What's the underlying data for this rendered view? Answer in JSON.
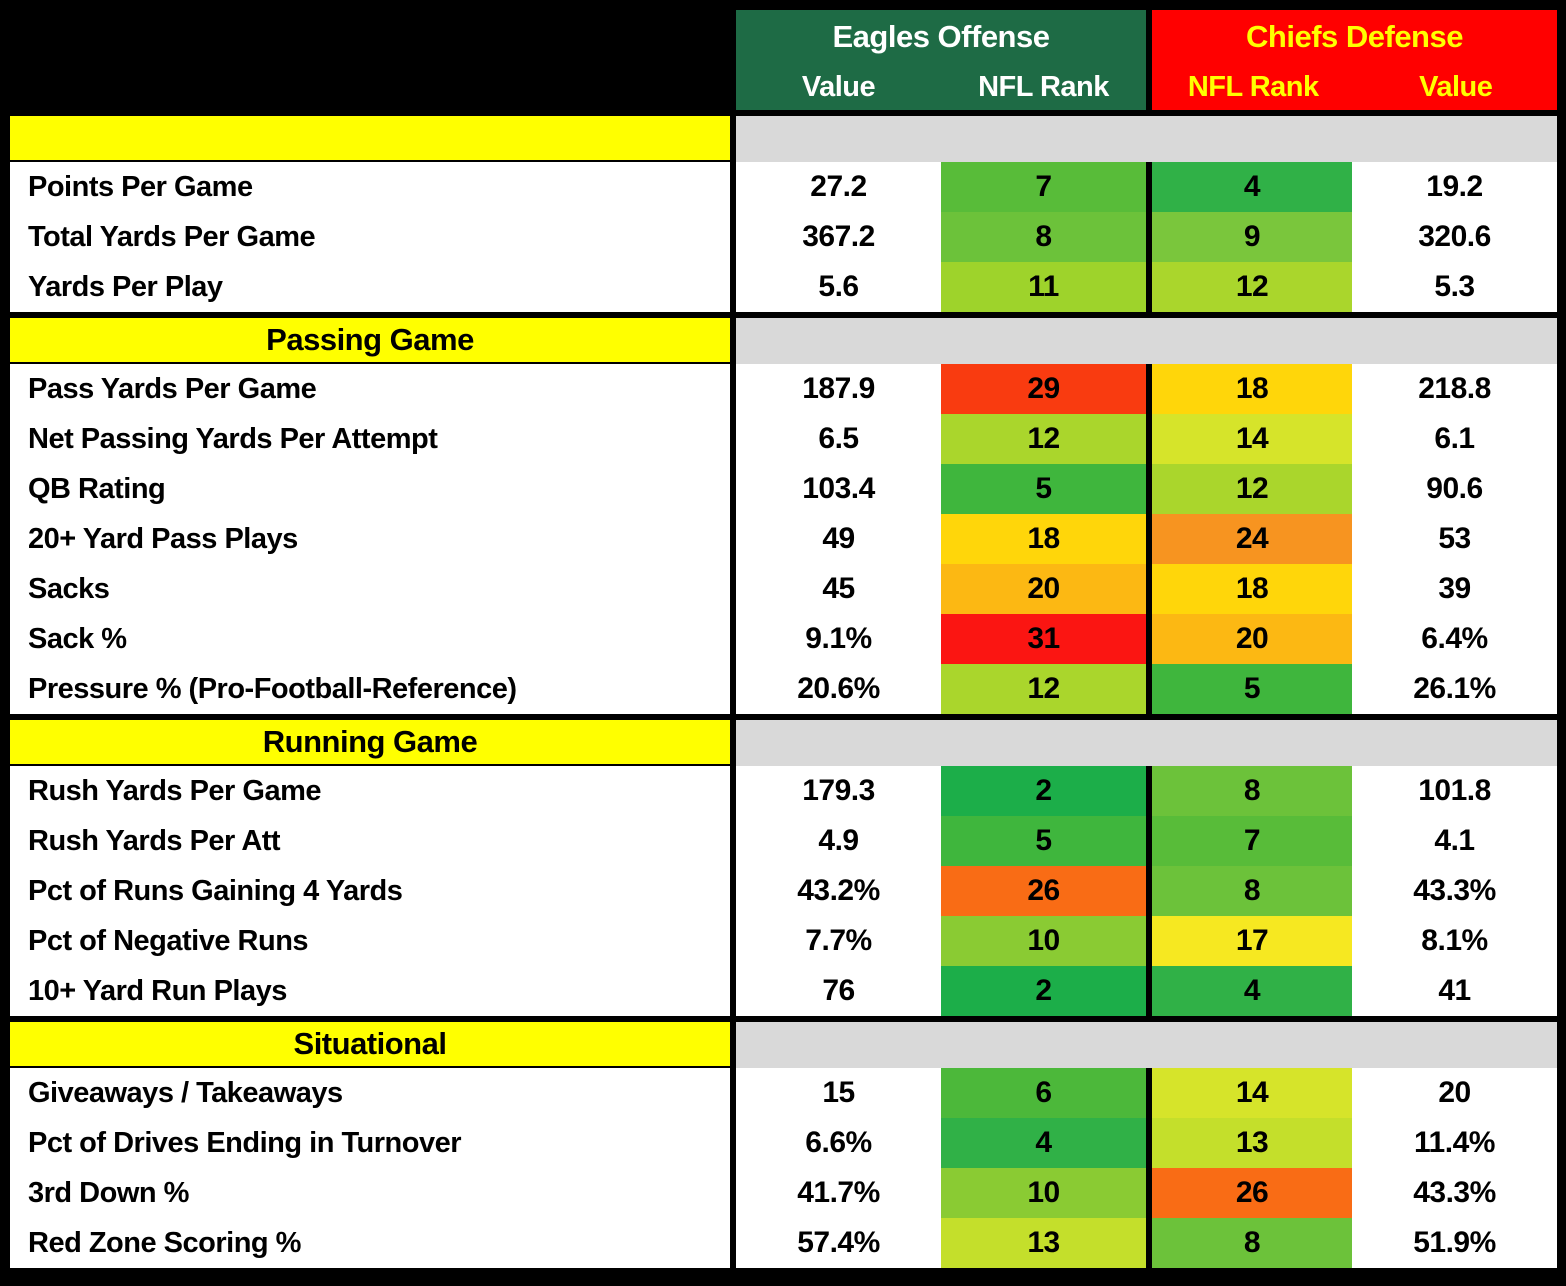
{
  "header": {
    "eagles": {
      "title": "Eagles Offense",
      "sub": [
        "Value",
        "NFL Rank"
      ]
    },
    "chiefs": {
      "title": "Chiefs Defense",
      "sub": [
        "NFL Rank",
        "Value"
      ]
    }
  },
  "colors": {
    "eagles_header_bg": "#1E6B45",
    "eagles_header_text": "#FFFFFF",
    "chiefs_header_bg": "#FF0000",
    "chiefs_header_text": "#FFFF00",
    "section_band_bg": "#FFFF00",
    "section_band_right_bg": "#D9D9D9",
    "row_bg": "#FFFFFF",
    "border": "#000000",
    "text": "#000000",
    "rank_colors": {
      "2": "#1CAE49",
      "4": "#30B147",
      "5": "#3FB63D",
      "6": "#4CB83A",
      "7": "#58BC39",
      "8": "#6CC23A",
      "9": "#7AC63C",
      "10": "#8ACB33",
      "11": "#9ED32B",
      "12": "#AAD62C",
      "13": "#C4DF2B",
      "14": "#D6E42A",
      "17": "#F6E821",
      "18": "#FFD60A",
      "20": "#FCB813",
      "24": "#F79420",
      "26": "#F96C15",
      "29": "#F93B10",
      "31": "#FB1512"
    }
  },
  "chart_data": {
    "type": "table",
    "column_groups": [
      {
        "label": "Eagles Offense",
        "columns": [
          "Value",
          "NFL Rank"
        ]
      },
      {
        "label": "Chiefs Defense",
        "columns": [
          "NFL Rank",
          "Value"
        ]
      }
    ],
    "rank_color_scale": "green (rank 1) through yellow (~16) to red (rank 32)",
    "sections": [
      {
        "title": "",
        "rows": [
          {
            "label": "Points Per Game",
            "eagles_value": "27.2",
            "eagles_rank": 7,
            "chiefs_rank": 4,
            "chiefs_value": "19.2"
          },
          {
            "label": "Total Yards Per Game",
            "eagles_value": "367.2",
            "eagles_rank": 8,
            "chiefs_rank": 9,
            "chiefs_value": "320.6"
          },
          {
            "label": "Yards Per Play",
            "eagles_value": "5.6",
            "eagles_rank": 11,
            "chiefs_rank": 12,
            "chiefs_value": "5.3"
          }
        ]
      },
      {
        "title": "Passing Game",
        "rows": [
          {
            "label": "Pass Yards Per Game",
            "eagles_value": "187.9",
            "eagles_rank": 29,
            "chiefs_rank": 18,
            "chiefs_value": "218.8"
          },
          {
            "label": "Net Passing Yards Per Attempt",
            "eagles_value": "6.5",
            "eagles_rank": 12,
            "chiefs_rank": 14,
            "chiefs_value": "6.1"
          },
          {
            "label": "QB Rating",
            "eagles_value": "103.4",
            "eagles_rank": 5,
            "chiefs_rank": 12,
            "chiefs_value": "90.6"
          },
          {
            "label": "20+ Yard Pass Plays",
            "eagles_value": "49",
            "eagles_rank": 18,
            "chiefs_rank": 24,
            "chiefs_value": "53"
          },
          {
            "label": "Sacks",
            "eagles_value": "45",
            "eagles_rank": 20,
            "chiefs_rank": 18,
            "chiefs_value": "39"
          },
          {
            "label": "Sack %",
            "eagles_value": "9.1%",
            "eagles_rank": 31,
            "chiefs_rank": 20,
            "chiefs_value": "6.4%"
          },
          {
            "label": "Pressure % (Pro-Football-Reference)",
            "eagles_value": "20.6%",
            "eagles_rank": 12,
            "chiefs_rank": 5,
            "chiefs_value": "26.1%"
          }
        ]
      },
      {
        "title": "Running Game",
        "rows": [
          {
            "label": "Rush Yards Per Game",
            "eagles_value": "179.3",
            "eagles_rank": 2,
            "chiefs_rank": 8,
            "chiefs_value": "101.8"
          },
          {
            "label": "Rush Yards Per Att",
            "eagles_value": "4.9",
            "eagles_rank": 5,
            "chiefs_rank": 7,
            "chiefs_value": "4.1"
          },
          {
            "label": "Pct of Runs Gaining 4 Yards",
            "eagles_value": "43.2%",
            "eagles_rank": 26,
            "chiefs_rank": 8,
            "chiefs_value": "43.3%"
          },
          {
            "label": "Pct of Negative Runs",
            "eagles_value": "7.7%",
            "eagles_rank": 10,
            "chiefs_rank": 17,
            "chiefs_value": "8.1%"
          },
          {
            "label": "10+ Yard Run Plays",
            "eagles_value": "76",
            "eagles_rank": 2,
            "chiefs_rank": 4,
            "chiefs_value": "41"
          }
        ]
      },
      {
        "title": "Situational",
        "rows": [
          {
            "label": "Giveaways / Takeaways",
            "eagles_value": "15",
            "eagles_rank": 6,
            "chiefs_rank": 14,
            "chiefs_value": "20"
          },
          {
            "label": "Pct of Drives Ending in Turnover",
            "eagles_value": "6.6%",
            "eagles_rank": 4,
            "chiefs_rank": 13,
            "chiefs_value": "11.4%"
          },
          {
            "label": "3rd Down %",
            "eagles_value": "41.7%",
            "eagles_rank": 10,
            "chiefs_rank": 26,
            "chiefs_value": "43.3%"
          },
          {
            "label": "Red Zone Scoring %",
            "eagles_value": "57.4%",
            "eagles_rank": 13,
            "chiefs_rank": 8,
            "chiefs_value": "51.9%"
          }
        ]
      }
    ]
  }
}
